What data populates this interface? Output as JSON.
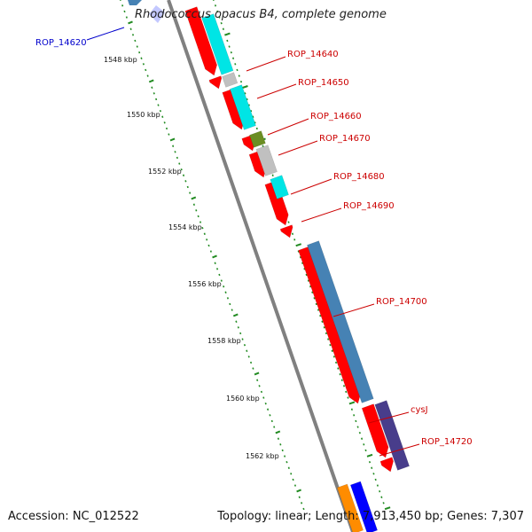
{
  "title": "Rhodococcus opacus B4, complete genome",
  "footer": {
    "accession": "Accession: NC_012522",
    "summary": "Topology: linear; Length: 7,913,450 bp; Genes: 7,307"
  },
  "scale_labels": [
    "1548 kbp",
    "1550 kbp",
    "1552 kbp",
    "1554 kbp",
    "1556 kbp",
    "1558 kbp",
    "1560 kbp",
    "1562 kbp"
  ],
  "gene_labels": [
    {
      "text": "ROP_14620",
      "color": "#0000cc"
    },
    {
      "text": "ROP_14640",
      "color": "#cc0000"
    },
    {
      "text": "ROP_14650",
      "color": "#cc0000"
    },
    {
      "text": "ROP_14660",
      "color": "#cc0000"
    },
    {
      "text": "ROP_14670",
      "color": "#cc0000"
    },
    {
      "text": "ROP_14680",
      "color": "#cc0000"
    },
    {
      "text": "ROP_14690",
      "color": "#cc0000"
    },
    {
      "text": "ROP_14700",
      "color": "#cc0000"
    },
    {
      "text": "cysJ",
      "color": "#cc0000"
    },
    {
      "text": "ROP_14720",
      "color": "#cc0000"
    }
  ],
  "colors": {
    "cds": "#ff0000",
    "cyan_feature": "#00e5e5",
    "grey_feature": "#c0c0c0",
    "olive_feature": "#6b8e23",
    "steelblue_feature": "#4682b4",
    "purple_feature": "#483d8b",
    "backbone": "#808080",
    "tick": "#228b22"
  }
}
